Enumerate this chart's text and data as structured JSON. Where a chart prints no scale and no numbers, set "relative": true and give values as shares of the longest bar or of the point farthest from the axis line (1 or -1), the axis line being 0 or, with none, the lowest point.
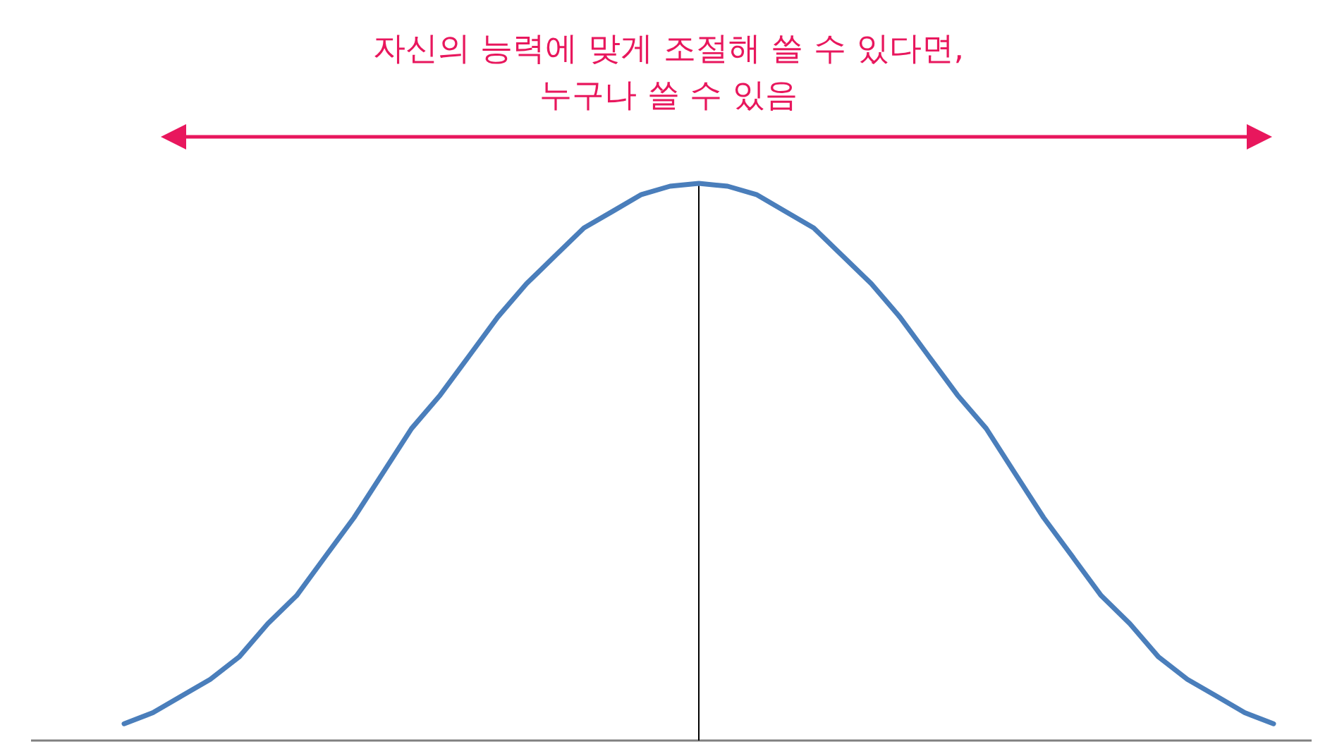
{
  "chart_data": {
    "type": "line",
    "relative": true,
    "annotations": [
      "자신의 능력에 맞게 조절해 쓸 수 있다면,\n누구나 쓸 수 있음"
    ],
    "categories": [
      null,
      null,
      null,
      null,
      null,
      null,
      null,
      null,
      null,
      null,
      null,
      null,
      null,
      null,
      null,
      null,
      null,
      null,
      null,
      null,
      null,
      null,
      null,
      null,
      null,
      null,
      null,
      null,
      null,
      null,
      null,
      null,
      null,
      null,
      null,
      null,
      null,
      null,
      null,
      null,
      null
    ],
    "values": [
      0.03,
      0.05,
      0.08,
      0.11,
      0.15,
      0.21,
      0.26,
      0.33,
      0.4,
      0.48,
      0.56,
      0.62,
      0.69,
      0.76,
      0.82,
      0.87,
      0.92,
      0.95,
      0.98,
      0.995,
      1,
      0.995,
      0.98,
      0.95,
      0.92,
      0.87,
      0.82,
      0.76,
      0.69,
      0.62,
      0.56,
      0.48,
      0.4,
      0.33,
      0.26,
      0.21,
      0.15,
      0.11,
      0.08,
      0.05,
      0.03
    ],
    "color": "#4a7ebb"
  }
}
